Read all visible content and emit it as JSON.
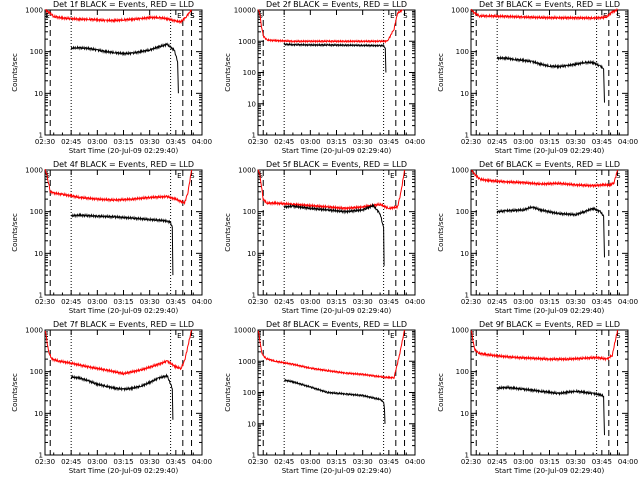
{
  "chart_data": [
    {
      "type": "line",
      "title": "Det 1f BLACK = Events, RED = LLD",
      "xlabel": "Start Time (20-Jul-09 02:29:40)",
      "ylabel": "Counts/sec",
      "x_ticks": [
        "02:30",
        "02:45",
        "03:00",
        "03:15",
        "03:30",
        "03:45",
        "04:00"
      ],
      "y_ticks": [
        "1",
        "10",
        "100",
        "1000"
      ],
      "ylim": [
        1,
        1000
      ],
      "yscale": "log",
      "markers": [
        "E",
        "S",
        "E",
        "S"
      ],
      "grid": false,
      "series": [
        {
          "color": "#ff0000",
          "x": [
            0.2,
            2,
            5,
            10,
            15,
            20,
            25,
            30,
            35,
            40,
            45,
            50,
            55,
            60,
            65,
            70,
            75,
            78,
            81,
            84
          ],
          "y": [
            1000,
            900,
            700,
            640,
            620,
            600,
            600,
            580,
            560,
            560,
            580,
            600,
            620,
            660,
            660,
            620,
            540,
            520,
            700,
            1000
          ]
        },
        {
          "color": "#000000",
          "x": [
            15,
            18,
            25,
            30,
            35,
            40,
            45,
            50,
            55,
            60,
            65,
            70,
            74,
            76,
            76.5
          ],
          "y": [
            120,
            125,
            120,
            110,
            100,
            95,
            90,
            92,
            100,
            110,
            130,
            150,
            110,
            60,
            10
          ]
        }
      ]
    },
    {
      "type": "line",
      "title": "Det 2f BLACK = Events, RED = LLD",
      "xlabel": "Start Time (20-Jul-09 02:29:40)",
      "ylabel": "Counts/sec",
      "x_ticks": [
        "02:30",
        "02:45",
        "03:00",
        "03:15",
        "03:30",
        "03:45",
        "04:00"
      ],
      "y_ticks": [
        "1",
        "10",
        "100",
        "1000",
        "10000"
      ],
      "ylim": [
        1,
        10000
      ],
      "yscale": "log",
      "markers": [
        "S",
        "E",
        "S"
      ],
      "grid": false,
      "series": [
        {
          "color": "#ff0000",
          "x": [
            0.2,
            1,
            2,
            3,
            5,
            10,
            20,
            30,
            40,
            50,
            60,
            70,
            74,
            75,
            78,
            80,
            83
          ],
          "y": [
            10000,
            8000,
            3000,
            1500,
            1100,
            1050,
            1000,
            1000,
            1000,
            1000,
            1000,
            1000,
            1000,
            1200,
            2500,
            8000,
            10000
          ]
        },
        {
          "color": "#000000",
          "x": [
            15,
            20,
            30,
            40,
            50,
            60,
            70,
            72,
            73,
            73.3
          ],
          "y": [
            800,
            780,
            760,
            760,
            750,
            740,
            720,
            720,
            600,
            100
          ]
        }
      ]
    },
    {
      "type": "line",
      "title": "Det 3f BLACK = Events, RED = LLD",
      "xlabel": "Start Time (20-Jul-09 02:29:40)",
      "ylabel": "Counts/sec",
      "x_ticks": [
        "02:30",
        "02:45",
        "03:00",
        "03:15",
        "03:30",
        "03:45",
        "04:00"
      ],
      "y_ticks": [
        "1",
        "10",
        "100",
        "1000"
      ],
      "ylim": [
        1,
        1000
      ],
      "yscale": "log",
      "markers": [
        "E",
        "S"
      ],
      "grid": false,
      "series": [
        {
          "color": "#ff0000",
          "x": [
            0.2,
            2,
            5,
            10,
            20,
            30,
            40,
            50,
            60,
            70,
            76,
            78,
            81,
            84
          ],
          "y": [
            1000,
            850,
            720,
            720,
            700,
            680,
            660,
            650,
            650,
            640,
            660,
            700,
            900,
            1000
          ]
        },
        {
          "color": "#000000",
          "x": [
            15,
            20,
            25,
            30,
            35,
            40,
            45,
            50,
            55,
            60,
            65,
            70,
            74,
            76,
            76.5
          ],
          "y": [
            70,
            70,
            65,
            62,
            58,
            50,
            45,
            44,
            46,
            50,
            55,
            55,
            45,
            40,
            6
          ]
        }
      ]
    },
    {
      "type": "line",
      "title": "Det 4f BLACK = Events, RED = LLD",
      "xlabel": "Start Time (20-Jul-09 02:29:40)",
      "ylabel": "Counts/sec",
      "x_ticks": [
        "02:30",
        "02:45",
        "03:00",
        "03:15",
        "03:30",
        "03:45",
        "04:00"
      ],
      "y_ticks": [
        "1",
        "10",
        "100",
        "1000"
      ],
      "ylim": [
        1,
        1000
      ],
      "yscale": "log",
      "markers": [
        "S",
        "E",
        "S"
      ],
      "grid": false,
      "series": [
        {
          "color": "#ff0000",
          "x": [
            0.2,
            1,
            2,
            3,
            5,
            10,
            15,
            20,
            30,
            40,
            50,
            60,
            70,
            75,
            80,
            82,
            84
          ],
          "y": [
            1000,
            800,
            500,
            300,
            280,
            260,
            240,
            220,
            200,
            190,
            200,
            220,
            230,
            200,
            160,
            300,
            1000
          ]
        },
        {
          "color": "#000000",
          "x": [
            15,
            20,
            30,
            40,
            50,
            60,
            70,
            72,
            73,
            73.3
          ],
          "y": [
            80,
            82,
            78,
            75,
            70,
            65,
            60,
            55,
            40,
            3
          ]
        }
      ]
    },
    {
      "type": "line",
      "title": "Det 5f BLACK = Events, RED = LLD",
      "xlabel": "Start Time (20-Jul-09 02:29:40)",
      "ylabel": "Counts/sec",
      "x_ticks": [
        "02:30",
        "02:45",
        "03:00",
        "03:15",
        "03:30",
        "03:45",
        "04:00"
      ],
      "y_ticks": [
        "1",
        "10",
        "100",
        "1000"
      ],
      "ylim": [
        1,
        1000
      ],
      "yscale": "log",
      "markers": [
        "S",
        "E",
        "S"
      ],
      "grid": false,
      "series": [
        {
          "color": "#ff0000",
          "x": [
            0.2,
            1,
            2,
            3,
            5,
            10,
            20,
            30,
            40,
            50,
            60,
            70,
            75,
            80,
            82,
            84
          ],
          "y": [
            1000,
            800,
            400,
            200,
            160,
            160,
            150,
            140,
            130,
            120,
            130,
            150,
            120,
            130,
            300,
            1000
          ]
        },
        {
          "color": "#000000",
          "x": [
            15,
            20,
            30,
            40,
            50,
            60,
            66,
            70,
            72,
            72.3
          ],
          "y": [
            130,
            135,
            120,
            110,
            100,
            110,
            140,
            90,
            40,
            5
          ]
        }
      ]
    },
    {
      "type": "line",
      "title": "Det 6f BLACK = Events, RED = LLD",
      "xlabel": "Start Time (20-Jul-09 02:29:40)",
      "ylabel": "Counts/sec",
      "x_ticks": [
        "02:30",
        "02:45",
        "03:00",
        "03:15",
        "03:30",
        "03:45",
        "04:00"
      ],
      "y_ticks": [
        "1",
        "10",
        "100",
        "1000"
      ],
      "ylim": [
        1,
        1000
      ],
      "yscale": "log",
      "markers": [
        "S"
      ],
      "grid": false,
      "series": [
        {
          "color": "#ff0000",
          "x": [
            0.2,
            2,
            5,
            10,
            20,
            30,
            40,
            50,
            60,
            70,
            76,
            80,
            82,
            84
          ],
          "y": [
            1000,
            800,
            600,
            560,
            520,
            500,
            460,
            480,
            440,
            420,
            440,
            440,
            500,
            1000
          ]
        },
        {
          "color": "#000000",
          "x": [
            15,
            20,
            30,
            35,
            40,
            50,
            60,
            65,
            70,
            74,
            76,
            76.5
          ],
          "y": [
            100,
            105,
            110,
            130,
            110,
            90,
            85,
            100,
            120,
            100,
            80,
            8
          ]
        }
      ]
    },
    {
      "type": "line",
      "title": "Det 7f BLACK = Events, RED = LLD",
      "xlabel": "Start Time (20-Jul-09 02:29:40)",
      "ylabel": "Counts/sec",
      "x_ticks": [
        "02:30",
        "02:45",
        "03:00",
        "03:15",
        "03:30",
        "03:45",
        "04:00"
      ],
      "y_ticks": [
        "1",
        "10",
        "100",
        "1000"
      ],
      "ylim": [
        1,
        1000
      ],
      "yscale": "log",
      "markers": [
        "E",
        "S"
      ],
      "grid": false,
      "series": [
        {
          "color": "#ff0000",
          "x": [
            0.2,
            1,
            2,
            4,
            8,
            15,
            25,
            35,
            45,
            55,
            65,
            70,
            75,
            78,
            80,
            84
          ],
          "y": [
            1000,
            600,
            300,
            200,
            180,
            160,
            130,
            110,
            90,
            110,
            150,
            180,
            130,
            120,
            180,
            1000
          ]
        },
        {
          "color": "#000000",
          "x": [
            15,
            20,
            25,
            30,
            35,
            40,
            45,
            50,
            55,
            60,
            65,
            70,
            73,
            73.3
          ],
          "y": [
            75,
            70,
            60,
            50,
            45,
            40,
            38,
            40,
            45,
            55,
            70,
            80,
            40,
            7
          ]
        }
      ]
    },
    {
      "type": "line",
      "title": "Det 8f BLACK = Events, RED = LLD",
      "xlabel": "Start Time (20-Jul-09 02:29:40)",
      "ylabel": "Counts/sec",
      "x_ticks": [
        "02:30",
        "02:45",
        "03:00",
        "03:15",
        "03:30",
        "03:45",
        "04:00"
      ],
      "y_ticks": [
        "1",
        "10",
        "100",
        "1000",
        "10000"
      ],
      "ylim": [
        1,
        10000
      ],
      "yscale": "log",
      "markers": [
        "E",
        "S"
      ],
      "grid": false,
      "series": [
        {
          "color": "#ff0000",
          "x": [
            0.2,
            1,
            2,
            3,
            5,
            10,
            20,
            30,
            40,
            50,
            60,
            70,
            75,
            78,
            81,
            84
          ],
          "y": [
            10000,
            5000,
            2000,
            1500,
            1200,
            1000,
            800,
            600,
            500,
            420,
            380,
            320,
            300,
            300,
            1500,
            10000
          ]
        },
        {
          "color": "#000000",
          "x": [
            15,
            20,
            30,
            40,
            50,
            60,
            70,
            72,
            72.5,
            72.8
          ],
          "y": [
            250,
            220,
            150,
            100,
            90,
            80,
            60,
            50,
            30,
            10
          ]
        }
      ]
    },
    {
      "type": "line",
      "title": "Det 9f BLACK = Events, RED = LLD",
      "xlabel": "Start Time (20-Jul-09 02:29:40)",
      "ylabel": "Counts/sec",
      "x_ticks": [
        "02:30",
        "02:45",
        "03:00",
        "03:15",
        "03:30",
        "03:45",
        "04:00"
      ],
      "y_ticks": [
        "1",
        "10",
        "100",
        "1000"
      ],
      "ylim": [
        1,
        1000
      ],
      "yscale": "log",
      "markers": [
        "S"
      ],
      "grid": false,
      "series": [
        {
          "color": "#ff0000",
          "x": [
            0.2,
            1,
            2,
            4,
            8,
            15,
            25,
            35,
            45,
            55,
            65,
            72,
            78,
            81,
            84
          ],
          "y": [
            1000,
            600,
            350,
            280,
            260,
            240,
            220,
            210,
            200,
            200,
            210,
            220,
            200,
            250,
            1000
          ]
        },
        {
          "color": "#000000",
          "x": [
            15,
            20,
            25,
            30,
            35,
            40,
            45,
            50,
            55,
            60,
            65,
            70,
            74,
            76,
            76.5
          ],
          "y": [
            40,
            42,
            40,
            38,
            36,
            34,
            32,
            30,
            32,
            34,
            32,
            30,
            28,
            26,
            3
          ]
        }
      ]
    }
  ]
}
